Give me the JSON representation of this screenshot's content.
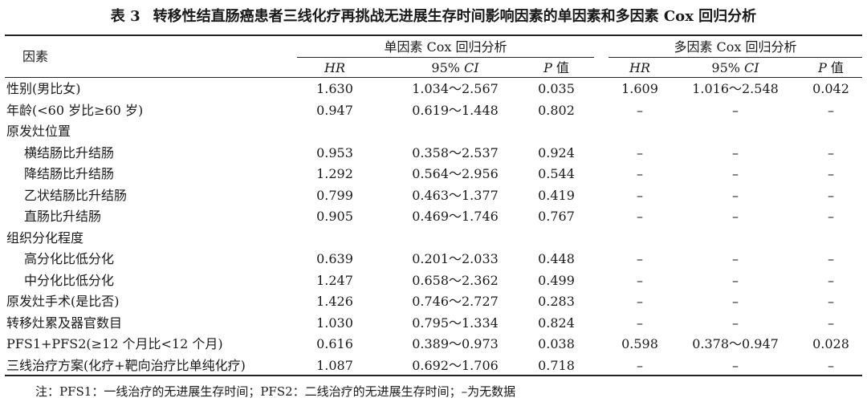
{
  "title": {
    "table_no": "表 3",
    "text": "转移性结直肠癌患者三线化疗再挑战无进展生存时间影响因素的单因素和多因素 Cox 回归分析"
  },
  "header": {
    "factor": "因素",
    "univariate": "单因素 Cox 回归分析",
    "multivariate": "多因素 Cox 回归分析",
    "hr": "HR",
    "ci_num": "95%",
    "ci_label": "CI",
    "p_label": "P",
    "p_suffix": "值"
  },
  "rows": [
    {
      "factor": "性别(男比女)",
      "indent": false,
      "uni_hr": "1.630",
      "uni_ci": "1.034～2.567",
      "uni_p": "0.035",
      "multi_hr": "1.609",
      "multi_ci": "1.016～2.548",
      "multi_p": "0.042"
    },
    {
      "factor": "年龄(<60 岁比≥60 岁)",
      "indent": false,
      "uni_hr": "0.947",
      "uni_ci": "0.619～1.448",
      "uni_p": "0.802",
      "multi_hr": "–",
      "multi_ci": "–",
      "multi_p": "–"
    },
    {
      "factor": "原发灶位置",
      "indent": false,
      "uni_hr": "",
      "uni_ci": "",
      "uni_p": "",
      "multi_hr": "",
      "multi_ci": "",
      "multi_p": ""
    },
    {
      "factor": "横结肠比升结肠",
      "indent": true,
      "uni_hr": "0.953",
      "uni_ci": "0.358～2.537",
      "uni_p": "0.924",
      "multi_hr": "–",
      "multi_ci": "–",
      "multi_p": "–"
    },
    {
      "factor": "降结肠比升结肠",
      "indent": true,
      "uni_hr": "1.292",
      "uni_ci": "0.564～2.956",
      "uni_p": "0.544",
      "multi_hr": "–",
      "multi_ci": "–",
      "multi_p": "–"
    },
    {
      "factor": "乙状结肠比升结肠",
      "indent": true,
      "uni_hr": "0.799",
      "uni_ci": "0.463～1.377",
      "uni_p": "0.419",
      "multi_hr": "–",
      "multi_ci": "–",
      "multi_p": "–"
    },
    {
      "factor": "直肠比升结肠",
      "indent": true,
      "uni_hr": "0.905",
      "uni_ci": "0.469～1.746",
      "uni_p": "0.767",
      "multi_hr": "–",
      "multi_ci": "–",
      "multi_p": "–"
    },
    {
      "factor": "组织分化程度",
      "indent": false,
      "uni_hr": "",
      "uni_ci": "",
      "uni_p": "",
      "multi_hr": "",
      "multi_ci": "",
      "multi_p": ""
    },
    {
      "factor": "高分化比低分化",
      "indent": true,
      "uni_hr": "0.639",
      "uni_ci": "0.201～2.033",
      "uni_p": "0.448",
      "multi_hr": "–",
      "multi_ci": "–",
      "multi_p": "–"
    },
    {
      "factor": "中分化比低分化",
      "indent": true,
      "uni_hr": "1.247",
      "uni_ci": "0.658～2.362",
      "uni_p": "0.499",
      "multi_hr": "–",
      "multi_ci": "–",
      "multi_p": "–"
    },
    {
      "factor": "原发灶手术(是比否)",
      "indent": false,
      "uni_hr": "1.426",
      "uni_ci": "0.746～2.727",
      "uni_p": "0.283",
      "multi_hr": "–",
      "multi_ci": "–",
      "multi_p": "–"
    },
    {
      "factor": "转移灶累及器官数目",
      "indent": false,
      "uni_hr": "1.030",
      "uni_ci": "0.795～1.334",
      "uni_p": "0.824",
      "multi_hr": "–",
      "multi_ci": "–",
      "multi_p": "–"
    },
    {
      "factor": "PFS1+PFS2(≥12 个月比<12 个月)",
      "indent": false,
      "uni_hr": "0.616",
      "uni_ci": "0.389～0.973",
      "uni_p": "0.038",
      "multi_hr": "0.598",
      "multi_ci": "0.378～0.947",
      "multi_p": "0.028"
    },
    {
      "factor": "三线治疗方案(化疗+靶向治疗比单纯化疗)",
      "indent": false,
      "uni_hr": "1.087",
      "uni_ci": "0.692～1.706",
      "uni_p": "0.718",
      "multi_hr": "–",
      "multi_ci": "–",
      "multi_p": "–"
    }
  ],
  "note": "注：PFS1：一线治疗的无进展生存时间；PFS2：二线治疗的无进展生存时间；–为无数据"
}
